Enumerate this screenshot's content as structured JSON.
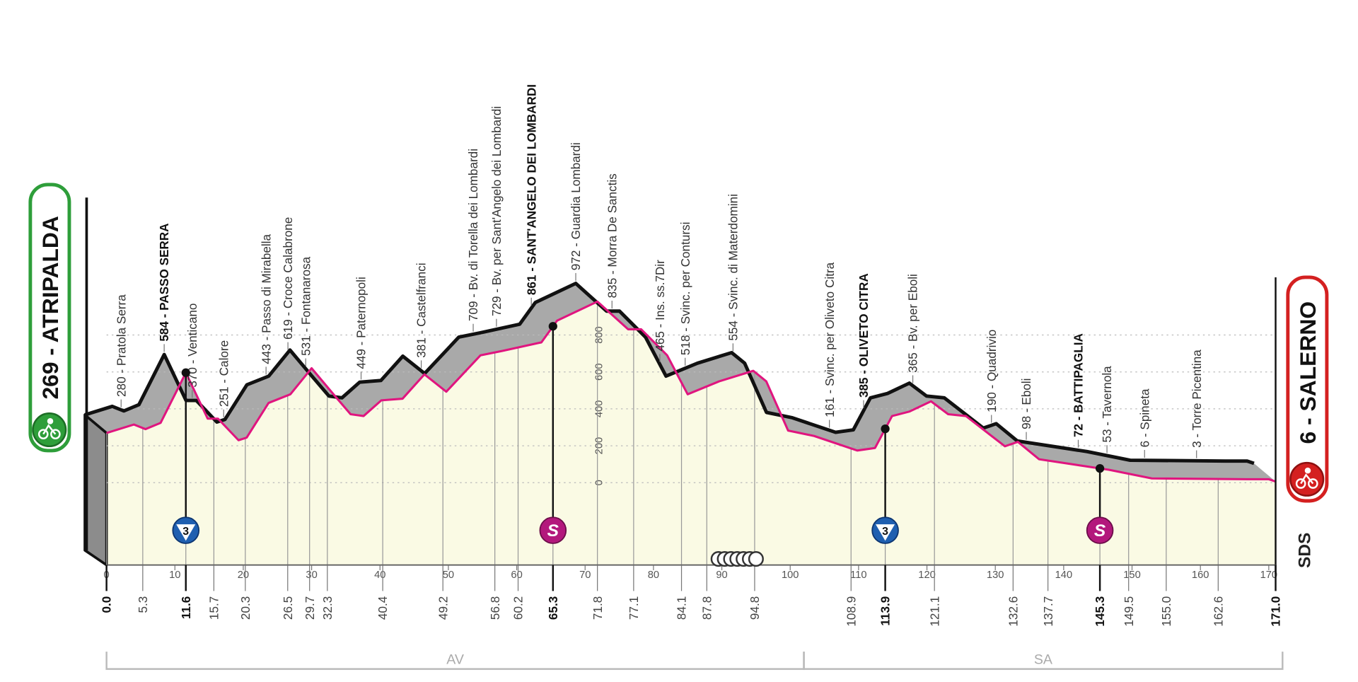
{
  "chart_data": {
    "type": "area",
    "xlabel": "",
    "ylabel": "",
    "xlim": [
      0,
      171
    ],
    "ylim": [
      0,
      1000
    ],
    "grid": true,
    "x_ticks": [
      0,
      10,
      20,
      30,
      40,
      50,
      60,
      70,
      80,
      90,
      100,
      110,
      120,
      130,
      140,
      150,
      160,
      170
    ],
    "y_ticks": [
      0,
      200,
      400,
      600,
      800
    ],
    "start": {
      "elevation": 269,
      "name": "ATRIPALDA",
      "label": "269 - ATRIPALDA"
    },
    "finish": {
      "elevation": 6,
      "name": "SALERNO",
      "label": "6 - SALERNO"
    },
    "points": [
      {
        "km": 0.0,
        "dist": "0.0",
        "bold": true,
        "label": ""
      },
      {
        "km": 5.3,
        "dist": "5.3",
        "bold": false,
        "elevation": 280,
        "label": "280 - Pratola Serra"
      },
      {
        "km": 11.6,
        "dist": "11.6",
        "bold": true,
        "elevation": 584,
        "label": "584 - PASSO SERRA"
      },
      {
        "km": 15.7,
        "dist": "15.7",
        "bold": false,
        "elevation": 370,
        "label": "370 - Venticano"
      },
      {
        "km": 20.3,
        "dist": "20.3",
        "bold": false,
        "elevation": 251,
        "label": "251 - Calore"
      },
      {
        "km": 26.5,
        "dist": "26.5",
        "bold": false,
        "elevation": 443,
        "label": "443 - Passo di Mirabella"
      },
      {
        "km": 29.7,
        "dist": "29.7",
        "bold": false,
        "elevation": 619,
        "label": "619 - Croce Calabrone"
      },
      {
        "km": 32.3,
        "dist": "32.3",
        "bold": false,
        "elevation": 531,
        "label": "531 - Fontanarosa"
      },
      {
        "km": 40.4,
        "dist": "40.4",
        "bold": false,
        "elevation": 449,
        "label": "449 - Paternopoli"
      },
      {
        "km": 49.2,
        "dist": "49.2",
        "bold": false,
        "elevation": 381,
        "label": "381 - Castelfranci"
      },
      {
        "km": 56.8,
        "dist": "56.8",
        "bold": false,
        "elevation": 709,
        "label": "709 - Bv. di Torella dei Lombardi"
      },
      {
        "km": 60.2,
        "dist": "60.2",
        "bold": false,
        "elevation": 729,
        "label": "729 - Bv. per Sant'Angelo dei Lombardi"
      },
      {
        "km": 65.3,
        "dist": "65.3",
        "bold": true,
        "elevation": 861,
        "label": "861 - SANT'ANGELO DEI LOMBARDI"
      },
      {
        "km": 71.8,
        "dist": "71.8",
        "bold": false,
        "elevation": 972,
        "label": "972 - Guardia Lombardi"
      },
      {
        "km": 77.1,
        "dist": "77.1",
        "bold": false,
        "elevation": 835,
        "label": "835 - Morra De Sanctis"
      },
      {
        "km": 84.1,
        "dist": "84.1",
        "bold": false,
        "elevation": 465,
        "label": "465 - Ins. ss.7Dir"
      },
      {
        "km": 87.8,
        "dist": "87.8",
        "bold": false,
        "elevation": 518,
        "label": "518 - Svinc. per Contursi"
      },
      {
        "km": 94.8,
        "dist": "94.8",
        "bold": false,
        "elevation": 554,
        "label": "554 - Svinc. di Materdomini"
      },
      {
        "km": 108.9,
        "dist": "108.9",
        "bold": false,
        "elevation": 161,
        "label": "161 - Svinc. per Oliveto Citra"
      },
      {
        "km": 113.9,
        "dist": "113.9",
        "bold": true,
        "elevation": 385,
        "label": "385 - OLIVETO CITRA"
      },
      {
        "km": 121.1,
        "dist": "121.1",
        "bold": false,
        "elevation": 365,
        "label": "365 - Bv. per Eboli"
      },
      {
        "km": 132.6,
        "dist": "132.6",
        "bold": false,
        "elevation": 190,
        "label": "190 - Quadrivio"
      },
      {
        "km": 137.7,
        "dist": "137.7",
        "bold": false,
        "elevation": 98,
        "label": "98 - Eboli"
      },
      {
        "km": 145.3,
        "dist": "145.3",
        "bold": true,
        "elevation": 72,
        "label": "72 - BATTIPAGLIA"
      },
      {
        "km": 149.5,
        "dist": "149.5",
        "bold": false,
        "elevation": 53,
        "label": "53 - Tavernola"
      },
      {
        "km": 155.0,
        "dist": "155.0",
        "bold": false,
        "elevation": 6,
        "label": "6 - Spineta"
      },
      {
        "km": 162.6,
        "dist": "162.6",
        "bold": false,
        "elevation": 3,
        "label": "3 - Torre Picentina"
      },
      {
        "km": 171.0,
        "dist": "171.0",
        "bold": true,
        "label": ""
      }
    ],
    "profile": [
      [
        0,
        269
      ],
      [
        4,
        315
      ],
      [
        5.7,
        290
      ],
      [
        7.9,
        324
      ],
      [
        11.6,
        596
      ],
      [
        14.8,
        347
      ],
      [
        16.3,
        347
      ],
      [
        19.3,
        230
      ],
      [
        20.5,
        244
      ],
      [
        23.7,
        432
      ],
      [
        26.9,
        479
      ],
      [
        30,
        620
      ],
      [
        33.2,
        479
      ],
      [
        35.7,
        371
      ],
      [
        37.6,
        361
      ],
      [
        40.2,
        446
      ],
      [
        43.3,
        455
      ],
      [
        46.5,
        587
      ],
      [
        49.7,
        493
      ],
      [
        54.7,
        690
      ],
      [
        57.9,
        714
      ],
      [
        63.6,
        760
      ],
      [
        65.9,
        878
      ],
      [
        71.8,
        981
      ],
      [
        76.3,
        831
      ],
      [
        78.2,
        831
      ],
      [
        82,
        690
      ],
      [
        85,
        479
      ],
      [
        89.6,
        549
      ],
      [
        94.6,
        606
      ],
      [
        96.5,
        549
      ],
      [
        99.7,
        282
      ],
      [
        103.5,
        253
      ],
      [
        109.8,
        174
      ],
      [
        112.4,
        188
      ],
      [
        114.9,
        361
      ],
      [
        117.4,
        385
      ],
      [
        120.6,
        441
      ],
      [
        123.1,
        371
      ],
      [
        125.7,
        361
      ],
      [
        131.4,
        197
      ],
      [
        133.3,
        221
      ],
      [
        136.4,
        127
      ],
      [
        146.6,
        70
      ],
      [
        152.9,
        23
      ],
      [
        166.8,
        19
      ],
      [
        170,
        19
      ],
      [
        171,
        6
      ]
    ],
    "climbs": [
      {
        "km": 11.6,
        "category": "3",
        "type": "gpm"
      },
      {
        "km": 113.9,
        "category": "3",
        "type": "gpm"
      }
    ],
    "sprints": [
      {
        "km": 65.3,
        "symbol": "S"
      },
      {
        "km": 145.3,
        "symbol": "S"
      }
    ],
    "feed_zone_km": [
      89.5,
      95
    ],
    "provinces": [
      {
        "name": "AV",
        "from": 0,
        "to": 102
      },
      {
        "name": "SA",
        "from": 102,
        "to": 171
      }
    ],
    "logo": "SDS",
    "colors": {
      "profile_line": "#e0157f",
      "back_line": "#111111",
      "band": "#a9a9a9",
      "fill": "#fafae4",
      "start": "#2e9e3a",
      "finish": "#d42020",
      "gpm": "#1f5fb0",
      "sprint": "#b3187c"
    }
  }
}
